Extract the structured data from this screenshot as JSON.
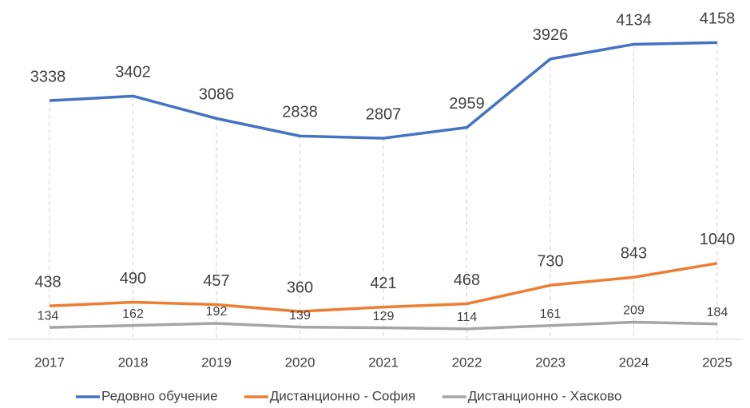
{
  "chart_data": {
    "type": "line",
    "categories": [
      "2017",
      "2018",
      "2019",
      "2020",
      "2021",
      "2022",
      "2023",
      "2024",
      "2025"
    ],
    "series": [
      {
        "name": "Редовно обучение",
        "color": "#4472c4",
        "values": [
          3338,
          3402,
          3086,
          2838,
          2807,
          2959,
          3926,
          4134,
          4158
        ]
      },
      {
        "name": "Дистанционно - София",
        "color": "#ed7d31",
        "values": [
          438,
          490,
          457,
          360,
          421,
          468,
          730,
          843,
          1040
        ]
      },
      {
        "name": "Дистанционно - Хасково",
        "color": "#a5a5a5",
        "values": [
          134,
          162,
          192,
          139,
          129,
          114,
          161,
          209,
          184
        ]
      }
    ],
    "ylim": [
      0,
      4500
    ]
  }
}
